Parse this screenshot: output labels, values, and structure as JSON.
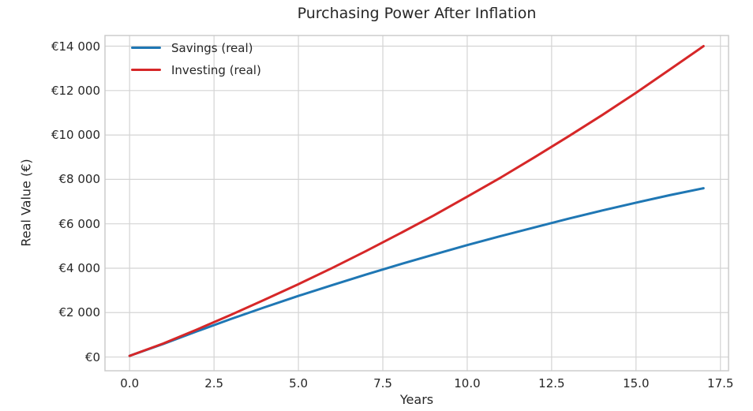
{
  "figure": {
    "background": "#ffffff",
    "grid_color": "#d4d4d4",
    "spine_color": "#c9c9c9",
    "text_color": "#262626"
  },
  "chart_data": {
    "type": "line",
    "title": "Purchasing Power After Inflation",
    "xlabel": "Years",
    "ylabel": "Real Value (€)",
    "grid": true,
    "legend_position": "upper left",
    "legend_frame": false,
    "xlim": [
      -0.73,
      17.74
    ],
    "ylim": [
      -620,
      14480
    ],
    "x_ticks": {
      "values": [
        0,
        2.5,
        5,
        7.5,
        10,
        12.5,
        15,
        17.5
      ],
      "labels": [
        "0.0",
        "2.5",
        "5.0",
        "7.5",
        "10.0",
        "12.5",
        "15.0",
        "17.5"
      ]
    },
    "y_ticks": {
      "values": [
        0,
        2000,
        4000,
        6000,
        8000,
        10000,
        12000,
        14000
      ],
      "labels": [
        "€0",
        "€2 000",
        "€4 000",
        "€6 000",
        "€8 000",
        "€10 000",
        "€12 000",
        "€14 000"
      ]
    },
    "x": [
      0,
      1,
      2,
      3,
      4,
      5,
      6,
      7,
      8,
      9,
      10,
      11,
      12,
      13,
      14,
      15,
      16,
      17
    ],
    "series": [
      {
        "name": "Savings (real)",
        "color": "#1f77b4",
        "values": [
          50,
          590,
          1160,
          1710,
          2240,
          2750,
          3240,
          3710,
          4170,
          4610,
          5040,
          5450,
          5840,
          6230,
          6600,
          6950,
          7290,
          7600
        ]
      },
      {
        "name": "Investing (real)",
        "color": "#d62728",
        "values": [
          50,
          610,
          1240,
          1900,
          2580,
          3280,
          4010,
          4770,
          5560,
          6370,
          7220,
          8090,
          9000,
          9940,
          10900,
          11900,
          12950,
          14000
        ]
      }
    ]
  }
}
